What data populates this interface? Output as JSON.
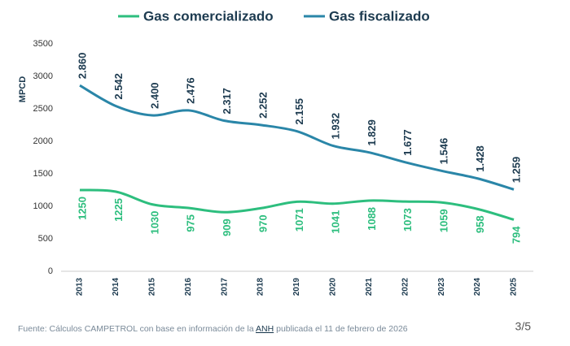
{
  "chart_data": {
    "type": "line",
    "y_label": "MPCD",
    "x": [
      "2013",
      "2014",
      "2015",
      "2016",
      "2017",
      "2018",
      "2019",
      "2020",
      "2021",
      "2022",
      "2023",
      "2024",
      "2025"
    ],
    "series": [
      {
        "name": "Gas comercializado",
        "color": "#2dbe7e",
        "values": [
          1250,
          1225,
          1030,
          975,
          909,
          970,
          1071,
          1041,
          1088,
          1073,
          1059,
          958,
          794
        ]
      },
      {
        "name": "Gas fiscalizado",
        "color": "#2a86a8",
        "values": [
          2860,
          2542,
          2400,
          2476,
          2317,
          2252,
          2155,
          1932,
          1829,
          1677,
          1546,
          1428,
          1259
        ],
        "value_labels": [
          "2.860",
          "2.542",
          "2.400",
          "2.476",
          "2.317",
          "2.252",
          "2.155",
          "1.932",
          "1.829",
          "1.677",
          "1.546",
          "1.428",
          "1.259"
        ]
      }
    ],
    "ylim": [
      0,
      3500
    ],
    "yticks": [
      0,
      500,
      1000,
      1500,
      2000,
      2500,
      3000,
      3500
    ],
    "grid": false
  },
  "footer": {
    "source_prefix": "Fuente: Cálculos CAMPETROL con base en información de la",
    "source_link": "ANH",
    "source_suffix": "publicada el 11 de febrero de 2026",
    "page": "3/5"
  }
}
